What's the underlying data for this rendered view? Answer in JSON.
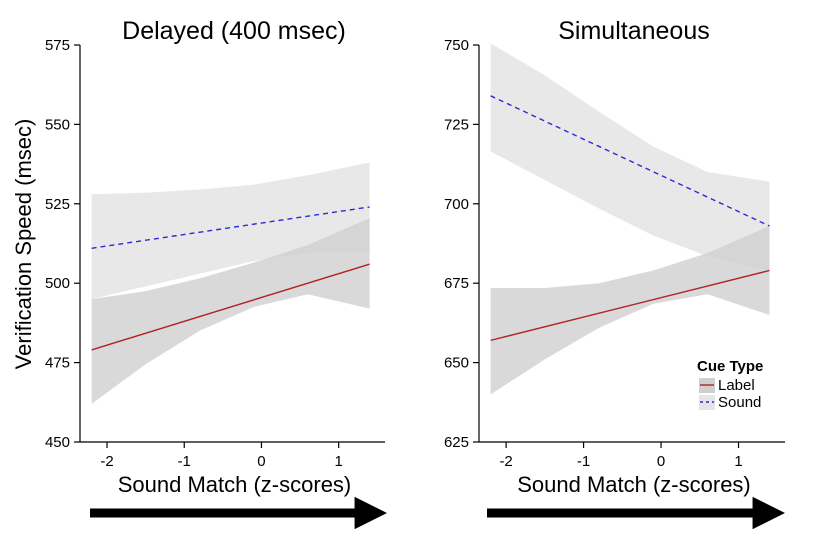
{
  "shared": {
    "ylabel": "Verification Speed (msec)",
    "legend": {
      "title": "Cue Type",
      "entries": [
        {
          "name": "Label",
          "color": "#b22222",
          "dash": "solid",
          "band_color": "#cfcfcf"
        },
        {
          "name": "Sound",
          "color": "#2b2bd6",
          "dash": "dashed",
          "band_color": "#e5e5e5"
        }
      ]
    },
    "arrow_color": "#000000"
  },
  "chart_data": [
    {
      "type": "line",
      "title": "Delayed (400 msec)",
      "xlabel": "Sound Match (z-scores)",
      "ylabel": "Verification Speed (msec)",
      "xlim": [
        -2.35,
        1.6
      ],
      "ylim": [
        450,
        575
      ],
      "xticks": [
        -2,
        -1,
        0,
        1
      ],
      "xtick_labels": [
        "-2",
        "-1",
        "0",
        "1"
      ],
      "yticks": [
        450,
        475,
        500,
        525,
        550,
        575
      ],
      "ytick_labels": [
        "450",
        "475",
        "500",
        "525",
        "550",
        "575"
      ],
      "grid": false,
      "series": [
        {
          "name": "Label",
          "x": [
            -2.2,
            1.4
          ],
          "y": [
            479,
            506
          ],
          "band_x": [
            -2.2,
            -1.5,
            -0.8,
            -0.1,
            0.6,
            1.4
          ],
          "band_lower": [
            462,
            474.5,
            485,
            492.5,
            496.5,
            492
          ],
          "band_upper": [
            495,
            497.5,
            501.5,
            506.5,
            512,
            520.5
          ]
        },
        {
          "name": "Sound",
          "x": [
            -2.2,
            1.4
          ],
          "y": [
            511,
            524
          ],
          "band_x": [
            -2.2,
            -1.5,
            -0.8,
            -0.1,
            0.6,
            1.4
          ],
          "band_lower": [
            495,
            499,
            503,
            507,
            509.5,
            510
          ],
          "band_upper": [
            528,
            528.5,
            529.5,
            531,
            534,
            538
          ]
        }
      ]
    },
    {
      "type": "line",
      "title": "Simultaneous",
      "xlabel": "Sound Match (z-scores)",
      "ylabel": "",
      "xlim": [
        -2.35,
        1.6
      ],
      "ylim": [
        625,
        750
      ],
      "xticks": [
        -2,
        -1,
        0,
        1
      ],
      "xtick_labels": [
        "-2",
        "-1",
        "0",
        "1"
      ],
      "yticks": [
        625,
        650,
        675,
        700,
        725,
        750
      ],
      "ytick_labels": [
        "625",
        "650",
        "675",
        "700",
        "725",
        "750"
      ],
      "grid": false,
      "series": [
        {
          "name": "Label",
          "x": [
            -2.2,
            1.4
          ],
          "y": [
            657,
            679
          ],
          "band_x": [
            -2.2,
            -1.5,
            -0.8,
            -0.1,
            0.6,
            1.4
          ],
          "band_lower": [
            640,
            651,
            661,
            668.5,
            671.5,
            665
          ],
          "band_upper": [
            673.5,
            673.5,
            675,
            679,
            684.5,
            693
          ]
        },
        {
          "name": "Sound",
          "x": [
            -2.2,
            1.4
          ],
          "y": [
            734,
            693
          ],
          "band_x": [
            -2.2,
            -1.5,
            -0.8,
            -0.1,
            0.6,
            1.4
          ],
          "band_lower": [
            716.5,
            707.5,
            698.5,
            690,
            683.5,
            679
          ],
          "band_upper": [
            750.5,
            740.5,
            729,
            718,
            710,
            707
          ]
        }
      ]
    }
  ]
}
